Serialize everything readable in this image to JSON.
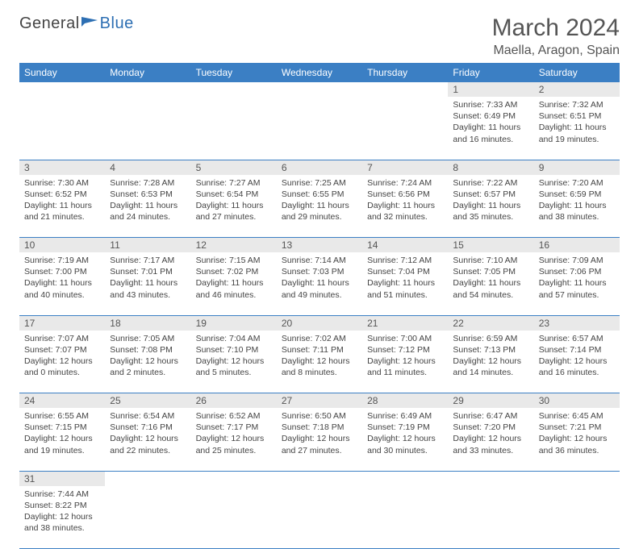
{
  "logo": {
    "part1": "General",
    "part2": "Blue"
  },
  "title": "March 2024",
  "location": "Maella, Aragon, Spain",
  "colors": {
    "header_bg": "#3b7fc4",
    "header_fg": "#ffffff",
    "daynum_bg": "#e9e9e9",
    "rule": "#3b7fc4",
    "text": "#444444",
    "logo_gray": "#555555",
    "logo_blue": "#2d6fb3"
  },
  "typography": {
    "title_fontsize": 30,
    "location_fontsize": 16,
    "dayhead_fontsize": 12,
    "cell_fontsize": 10.5
  },
  "day_headers": [
    "Sunday",
    "Monday",
    "Tuesday",
    "Wednesday",
    "Thursday",
    "Friday",
    "Saturday"
  ],
  "weeks": [
    [
      null,
      null,
      null,
      null,
      null,
      {
        "n": "1",
        "sunrise": "7:33 AM",
        "sunset": "6:49 PM",
        "dl_h": 11,
        "dl_m": 16
      },
      {
        "n": "2",
        "sunrise": "7:32 AM",
        "sunset": "6:51 PM",
        "dl_h": 11,
        "dl_m": 19
      }
    ],
    [
      {
        "n": "3",
        "sunrise": "7:30 AM",
        "sunset": "6:52 PM",
        "dl_h": 11,
        "dl_m": 21
      },
      {
        "n": "4",
        "sunrise": "7:28 AM",
        "sunset": "6:53 PM",
        "dl_h": 11,
        "dl_m": 24
      },
      {
        "n": "5",
        "sunrise": "7:27 AM",
        "sunset": "6:54 PM",
        "dl_h": 11,
        "dl_m": 27
      },
      {
        "n": "6",
        "sunrise": "7:25 AM",
        "sunset": "6:55 PM",
        "dl_h": 11,
        "dl_m": 29
      },
      {
        "n": "7",
        "sunrise": "7:24 AM",
        "sunset": "6:56 PM",
        "dl_h": 11,
        "dl_m": 32
      },
      {
        "n": "8",
        "sunrise": "7:22 AM",
        "sunset": "6:57 PM",
        "dl_h": 11,
        "dl_m": 35
      },
      {
        "n": "9",
        "sunrise": "7:20 AM",
        "sunset": "6:59 PM",
        "dl_h": 11,
        "dl_m": 38
      }
    ],
    [
      {
        "n": "10",
        "sunrise": "7:19 AM",
        "sunset": "7:00 PM",
        "dl_h": 11,
        "dl_m": 40
      },
      {
        "n": "11",
        "sunrise": "7:17 AM",
        "sunset": "7:01 PM",
        "dl_h": 11,
        "dl_m": 43
      },
      {
        "n": "12",
        "sunrise": "7:15 AM",
        "sunset": "7:02 PM",
        "dl_h": 11,
        "dl_m": 46
      },
      {
        "n": "13",
        "sunrise": "7:14 AM",
        "sunset": "7:03 PM",
        "dl_h": 11,
        "dl_m": 49
      },
      {
        "n": "14",
        "sunrise": "7:12 AM",
        "sunset": "7:04 PM",
        "dl_h": 11,
        "dl_m": 51
      },
      {
        "n": "15",
        "sunrise": "7:10 AM",
        "sunset": "7:05 PM",
        "dl_h": 11,
        "dl_m": 54
      },
      {
        "n": "16",
        "sunrise": "7:09 AM",
        "sunset": "7:06 PM",
        "dl_h": 11,
        "dl_m": 57
      }
    ],
    [
      {
        "n": "17",
        "sunrise": "7:07 AM",
        "sunset": "7:07 PM",
        "dl_h": 12,
        "dl_m": 0
      },
      {
        "n": "18",
        "sunrise": "7:05 AM",
        "sunset": "7:08 PM",
        "dl_h": 12,
        "dl_m": 2
      },
      {
        "n": "19",
        "sunrise": "7:04 AM",
        "sunset": "7:10 PM",
        "dl_h": 12,
        "dl_m": 5
      },
      {
        "n": "20",
        "sunrise": "7:02 AM",
        "sunset": "7:11 PM",
        "dl_h": 12,
        "dl_m": 8
      },
      {
        "n": "21",
        "sunrise": "7:00 AM",
        "sunset": "7:12 PM",
        "dl_h": 12,
        "dl_m": 11
      },
      {
        "n": "22",
        "sunrise": "6:59 AM",
        "sunset": "7:13 PM",
        "dl_h": 12,
        "dl_m": 14
      },
      {
        "n": "23",
        "sunrise": "6:57 AM",
        "sunset": "7:14 PM",
        "dl_h": 12,
        "dl_m": 16
      }
    ],
    [
      {
        "n": "24",
        "sunrise": "6:55 AM",
        "sunset": "7:15 PM",
        "dl_h": 12,
        "dl_m": 19
      },
      {
        "n": "25",
        "sunrise": "6:54 AM",
        "sunset": "7:16 PM",
        "dl_h": 12,
        "dl_m": 22
      },
      {
        "n": "26",
        "sunrise": "6:52 AM",
        "sunset": "7:17 PM",
        "dl_h": 12,
        "dl_m": 25
      },
      {
        "n": "27",
        "sunrise": "6:50 AM",
        "sunset": "7:18 PM",
        "dl_h": 12,
        "dl_m": 27
      },
      {
        "n": "28",
        "sunrise": "6:49 AM",
        "sunset": "7:19 PM",
        "dl_h": 12,
        "dl_m": 30
      },
      {
        "n": "29",
        "sunrise": "6:47 AM",
        "sunset": "7:20 PM",
        "dl_h": 12,
        "dl_m": 33
      },
      {
        "n": "30",
        "sunrise": "6:45 AM",
        "sunset": "7:21 PM",
        "dl_h": 12,
        "dl_m": 36
      }
    ],
    [
      {
        "n": "31",
        "sunrise": "7:44 AM",
        "sunset": "8:22 PM",
        "dl_h": 12,
        "dl_m": 38
      },
      null,
      null,
      null,
      null,
      null,
      null
    ]
  ],
  "labels": {
    "sunrise": "Sunrise:",
    "sunset": "Sunset:",
    "daylight": "Daylight:",
    "hours_word": "hours",
    "and_word": "and",
    "minutes_word": "minutes."
  }
}
